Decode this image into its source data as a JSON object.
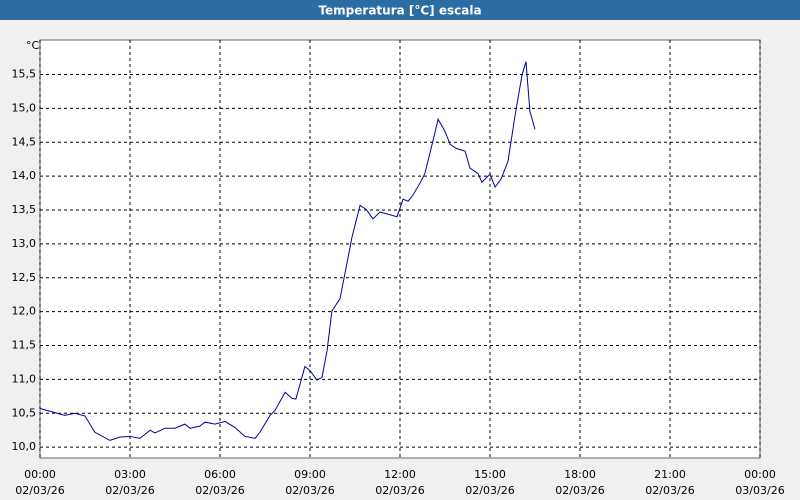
{
  "chart_data": {
    "type": "line",
    "title": "Temperatura [°C] escala",
    "y_unit": "°C",
    "x": [
      0,
      0.5,
      0.83,
      1.17,
      1.5,
      1.83,
      2.33,
      2.67,
      3,
      3.33,
      3.67,
      3.83,
      4.17,
      4.5,
      4.83,
      5,
      5.33,
      5.5,
      5.83,
      6.17,
      6.5,
      6.83,
      7.17,
      7.33,
      7.67,
      7.83,
      8.17,
      8.4,
      8.53,
      8.83,
      9,
      9.23,
      9.4,
      9.57,
      9.73,
      10,
      10.4,
      10.67,
      10.87,
      11.1,
      11.33,
      11.67,
      11.9,
      12.1,
      12.27,
      12.43,
      12.67,
      12.83,
      13.07,
      13.27,
      13.5,
      13.67,
      13.87,
      14.17,
      14.33,
      14.6,
      14.73,
      15,
      15.17,
      15.37,
      15.6,
      15.83,
      16.07,
      16.2,
      16.33,
      16.5
    ],
    "series": [
      {
        "color": "#0000a0",
        "values": [
          10.57,
          10.51,
          10.47,
          10.5,
          10.46,
          10.22,
          10.1,
          10.15,
          10.16,
          10.13,
          10.25,
          10.21,
          10.28,
          10.28,
          10.34,
          10.28,
          10.31,
          10.37,
          10.34,
          10.38,
          10.29,
          10.16,
          10.13,
          10.22,
          10.47,
          10.54,
          10.81,
          10.72,
          10.71,
          11.19,
          11.13,
          10.99,
          11.03,
          11.43,
          12.01,
          12.19,
          13.1,
          13.57,
          13.51,
          13.37,
          13.47,
          13.43,
          13.4,
          13.66,
          13.63,
          13.72,
          13.9,
          14.04,
          14.47,
          14.84,
          14.66,
          14.47,
          14.41,
          14.37,
          14.12,
          14.04,
          13.91,
          14.03,
          13.84,
          13.96,
          14.22,
          14.88,
          15.5,
          15.69,
          14.96,
          14.69
        ]
      }
    ],
    "xlim": [
      0,
      24
    ],
    "xticks": [
      {
        "value": 0,
        "label": "00:00",
        "date": "02/03/26"
      },
      {
        "value": 3,
        "label": "03:00",
        "date": "02/03/26"
      },
      {
        "value": 6,
        "label": "06:00",
        "date": "02/03/26"
      },
      {
        "value": 9,
        "label": "09:00",
        "date": "02/03/26"
      },
      {
        "value": 12,
        "label": "12:00",
        "date": "02/03/26"
      },
      {
        "value": 15,
        "label": "15:00",
        "date": "02/03/26"
      },
      {
        "value": 18,
        "label": "18:00",
        "date": "02/03/26"
      },
      {
        "value": 21,
        "label": "21:00",
        "date": "02/03/26"
      },
      {
        "value": 24,
        "label": "00:00",
        "date": "03/03/26"
      }
    ],
    "ylim": [
      9.84,
      16.01
    ],
    "yticks": [
      {
        "value": 10,
        "label": "10,0"
      },
      {
        "value": 10.5,
        "label": "10,5"
      },
      {
        "value": 11,
        "label": "11,0"
      },
      {
        "value": 11.5,
        "label": "11,5"
      },
      {
        "value": 12,
        "label": "12,0"
      },
      {
        "value": 12.5,
        "label": "12,5"
      },
      {
        "value": 13,
        "label": "13,0"
      },
      {
        "value": 13.5,
        "label": "13,5"
      },
      {
        "value": 14,
        "label": "14,0"
      },
      {
        "value": 14.5,
        "label": "14,5"
      },
      {
        "value": 15,
        "label": "15,0"
      },
      {
        "value": 15.5,
        "label": "15,5"
      }
    ],
    "grid": true
  }
}
